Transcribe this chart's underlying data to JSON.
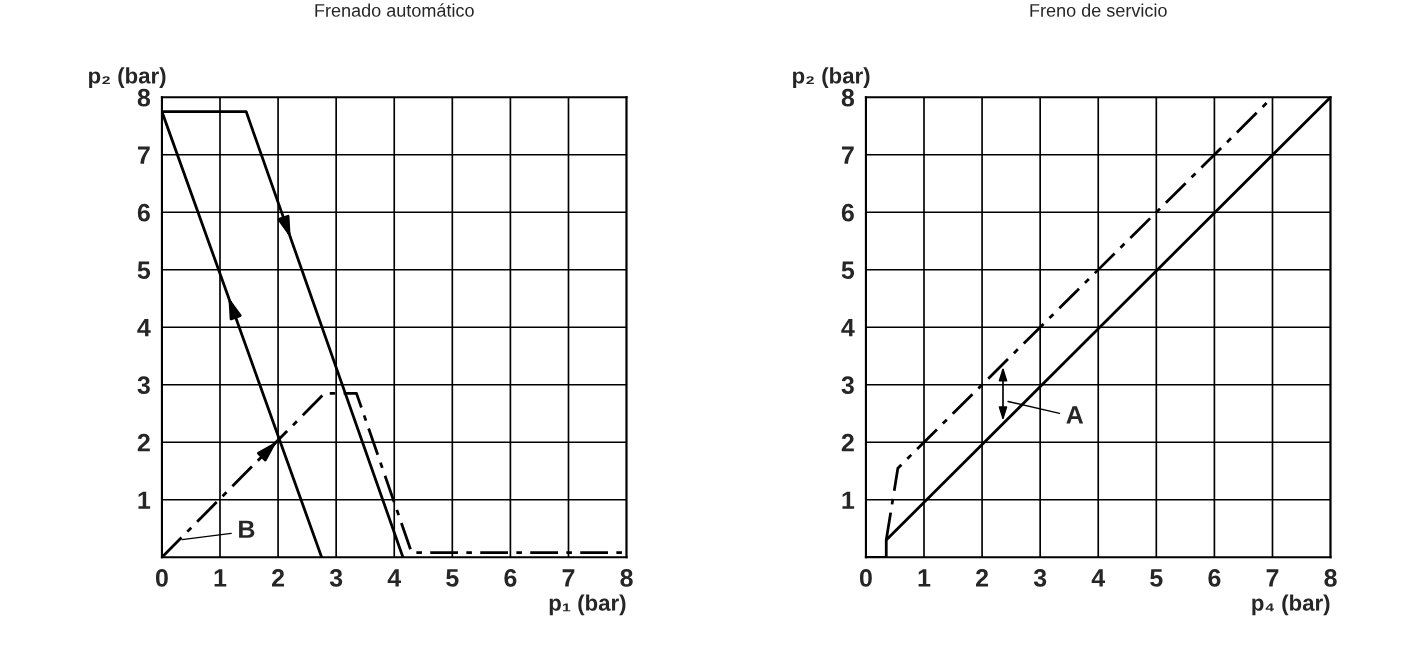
{
  "chart_data": [
    {
      "type": "line",
      "title": "Frenado automático",
      "xlabel": "p₁ (bar)",
      "ylabel": "p₂ (bar)",
      "xlim": [
        0,
        8
      ],
      "ylim": [
        0,
        8
      ],
      "xticks": [
        0,
        1,
        2,
        3,
        4,
        5,
        6,
        7,
        8
      ],
      "yticks": [
        1,
        2,
        3,
        4,
        5,
        6,
        7,
        8
      ],
      "grid": true,
      "legend": false,
      "series": [
        {
          "color": "#000000",
          "line_style": "solid",
          "x": [
            0,
            2.75
          ],
          "values": [
            7.75,
            0
          ]
        },
        {
          "color": "#000000",
          "line_style": "solid",
          "x": [
            0,
            1.45,
            4.15
          ],
          "values": [
            7.75,
            7.75,
            0
          ]
        },
        {
          "color": "#000000",
          "line_style": "dashed",
          "x": [
            0,
            2.8,
            3.35,
            4.3,
            8
          ],
          "values": [
            0,
            2.85,
            2.85,
            0.08,
            0.08
          ]
        }
      ],
      "annotations": [
        {
          "text": "B",
          "x": 0.3,
          "y": 0.3
        }
      ]
    },
    {
      "type": "line",
      "title": "Freno de servicio",
      "xlabel": "p₄ (bar)",
      "ylabel": "p₂ (bar)",
      "xlim": [
        0,
        8
      ],
      "ylim": [
        0,
        8
      ],
      "xticks": [
        0,
        1,
        2,
        3,
        4,
        5,
        6,
        7,
        8
      ],
      "yticks": [
        1,
        2,
        3,
        4,
        5,
        6,
        7,
        8
      ],
      "grid": true,
      "legend": false,
      "series": [
        {
          "color": "#000000",
          "line_style": "dashed",
          "x": [
            0.35,
            0.55,
            7
          ],
          "values": [
            0.3,
            1.55,
            8
          ]
        },
        {
          "color": "#000000",
          "line_style": "solid",
          "x": [
            0,
            0.35,
            0.35,
            8
          ],
          "values": [
            0,
            0,
            0.3,
            8
          ]
        }
      ],
      "annotations": [
        "A"
      ]
    }
  ]
}
